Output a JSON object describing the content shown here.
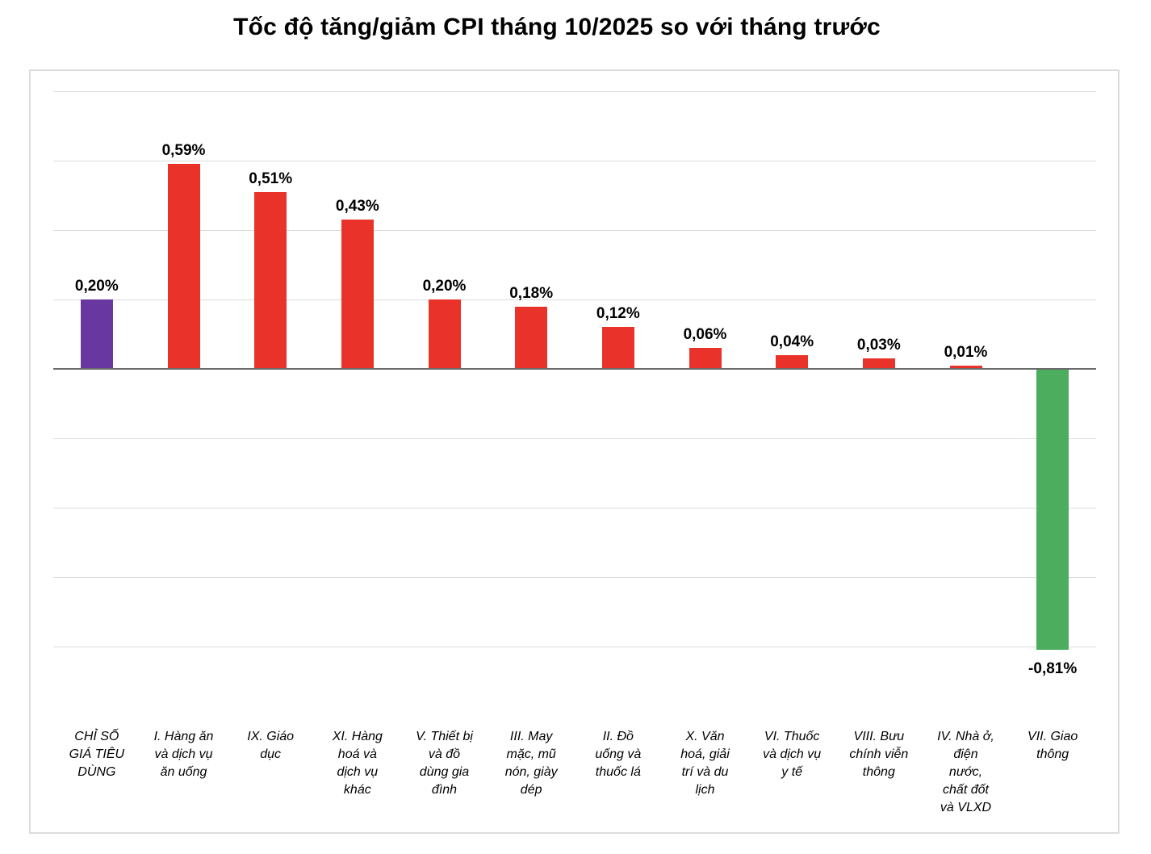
{
  "page": {
    "title": "Tốc độ tăng/giảm CPI tháng 10/2025 so với tháng trước"
  },
  "chart_data": {
    "type": "bar",
    "title": "Tốc độ tăng/giảm CPI tháng 10/2025 so với tháng trước",
    "unit": "%",
    "decimal_separator": ",",
    "xlabel": "",
    "ylabel": "",
    "ylim": [
      -0.9,
      0.85
    ],
    "gridline_step": 0.2,
    "grid": true,
    "legend_position": "none",
    "y_axis_tick_labels_visible": false,
    "categories": [
      "CHỈ SỐ GIÁ TIÊU DÙNG",
      "I. Hàng ăn và dịch vụ ăn uống",
      "IX. Giáo dục",
      "XI. Hàng hoá và dịch vụ khác",
      "V. Thiết bị và đồ dùng gia đình",
      "III. May mặc, mũ nón, giày dép",
      "II. Đồ uống và thuốc lá",
      "X. Văn hoá, giải trí và du lịch",
      "VI. Thuốc và dịch vụ y tế",
      "VIII. Bưu chính viễn thông",
      "IV. Nhà ở, điện nước, chất đốt và VLXD",
      "VII. Giao thông"
    ],
    "categories_wrapped": [
      [
        "CHỈ SỐ",
        "GIÁ TIÊU",
        "DÙNG"
      ],
      [
        "I. Hàng ăn",
        "và dịch vụ",
        "ăn uống"
      ],
      [
        "IX. Giáo",
        "dục"
      ],
      [
        "XI. Hàng",
        "hoá và",
        "dịch vụ",
        "khác"
      ],
      [
        "V. Thiết bị",
        "và đồ",
        "dùng gia",
        "đình"
      ],
      [
        "III. May",
        "mặc, mũ",
        "nón, giày",
        "dép"
      ],
      [
        "II. Đồ",
        "uống và",
        "thuốc lá"
      ],
      [
        "X. Văn",
        "hoá, giải",
        "trí và du",
        "lịch"
      ],
      [
        "VI. Thuốc",
        "và dịch vụ",
        "y tế"
      ],
      [
        "VIII. Bưu",
        "chính viễn",
        "thông"
      ],
      [
        "IV. Nhà ở,",
        "điện",
        "nước,",
        "chất đốt",
        "và VLXD"
      ],
      [
        "VII. Giao",
        "thông"
      ]
    ],
    "values": [
      0.2,
      0.59,
      0.51,
      0.43,
      0.2,
      0.18,
      0.12,
      0.06,
      0.04,
      0.03,
      0.01,
      -0.81
    ],
    "value_labels": [
      "0,20%",
      "0,59%",
      "0,51%",
      "0,43%",
      "0,20%",
      "0,18%",
      "0,12%",
      "0,06%",
      "0,04%",
      "0,03%",
      "0,01%",
      "-0,81%"
    ],
    "bar_colors": [
      "#6937A0",
      "#E9332A",
      "#E9332A",
      "#E9332A",
      "#E9332A",
      "#E9332A",
      "#E9332A",
      "#E9332A",
      "#E9332A",
      "#E9332A",
      "#E9332A",
      "#4CAD5F"
    ],
    "colors": {
      "cpi_index_bar": "#6937A0",
      "increase_bar": "#E9332A",
      "decrease_bar": "#4CAD5F",
      "gridline": "#DBDBDB",
      "zero_axis": "#6A6A6A",
      "frame_border": "#DCDCDC",
      "text": "#000000"
    }
  }
}
